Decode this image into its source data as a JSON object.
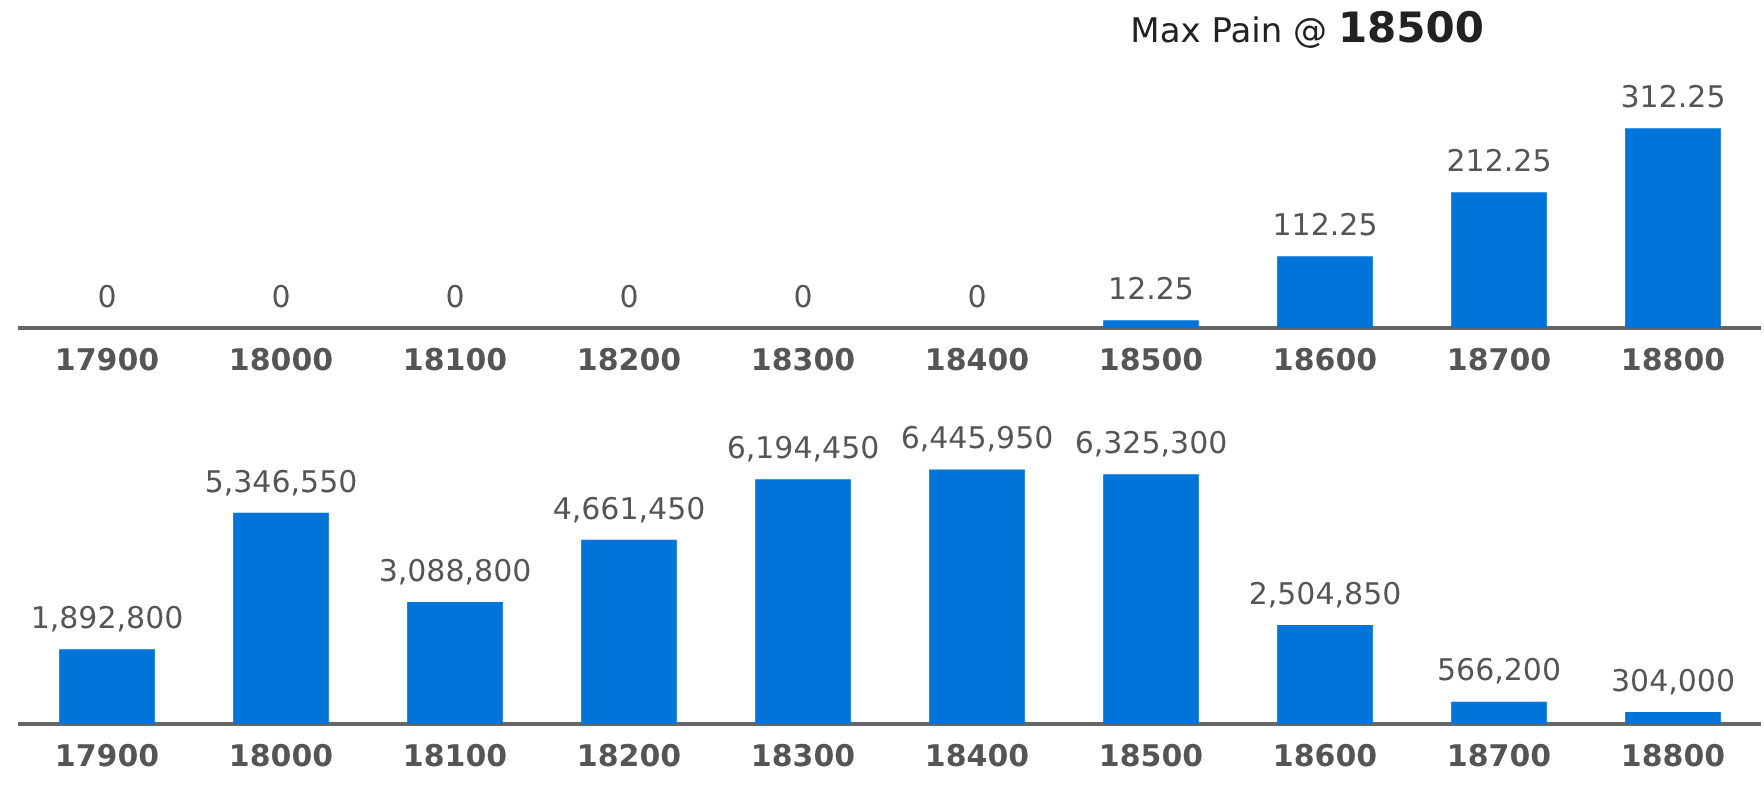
{
  "chart_data": [
    {
      "type": "bar",
      "title": "Max Pain @ 18500",
      "categories": [
        "17900",
        "18000",
        "18100",
        "18200",
        "18300",
        "18400",
        "18500",
        "18600",
        "18700",
        "18800"
      ],
      "values": [
        0,
        0,
        0,
        0,
        0,
        0,
        12.25,
        112.25,
        212.25,
        312.25
      ],
      "color": "#0074d9",
      "tick_labels": "x",
      "data_labels": true
    },
    {
      "type": "bar",
      "categories": [
        "17900",
        "18000",
        "18100",
        "18200",
        "18300",
        "18400",
        "18500",
        "18600",
        "18700",
        "18800"
      ],
      "values": [
        1892800,
        5346550,
        3088800,
        4661450,
        6194450,
        6445950,
        6325300,
        2504850,
        566200,
        304000
      ],
      "value_labels": [
        "1,892,800",
        "5,346,550",
        "3,088,800",
        "4,661,450",
        "6,194,450",
        "6,445,950",
        "6,325,300",
        "2,504,850",
        "566,200",
        "304,000"
      ],
      "color": "#0074d9",
      "tick_labels": "x"
    }
  ]
}
